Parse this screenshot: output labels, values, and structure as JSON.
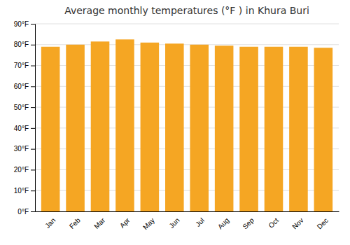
{
  "chart_data": {
    "type": "bar",
    "title": "Average monthly temperatures (°F ) in Khura Buri",
    "categories": [
      "Jan",
      "Feb",
      "Mar",
      "Apr",
      "May",
      "Jun",
      "Jul",
      "Aug",
      "Sep",
      "Oct",
      "Nov",
      "Dec"
    ],
    "values": [
      79,
      80,
      81.5,
      82.5,
      81,
      80.5,
      80,
      79.5,
      79,
      79,
      79,
      78.5
    ],
    "color": "#F5A623",
    "ylim": [
      0,
      90
    ],
    "yticks": [
      {
        "value": 0,
        "label": "0°F"
      },
      {
        "value": 10,
        "label": "10°F"
      },
      {
        "value": 20,
        "label": "20°F"
      },
      {
        "value": 30,
        "label": "30°F"
      },
      {
        "value": 40,
        "label": "40°F"
      },
      {
        "value": 50,
        "label": "50°F"
      },
      {
        "value": 60,
        "label": "60°F"
      },
      {
        "value": 70,
        "label": "70°F"
      },
      {
        "value": 80,
        "label": "80°F"
      },
      {
        "value": 90,
        "label": "90°F"
      }
    ],
    "grid": true
  }
}
